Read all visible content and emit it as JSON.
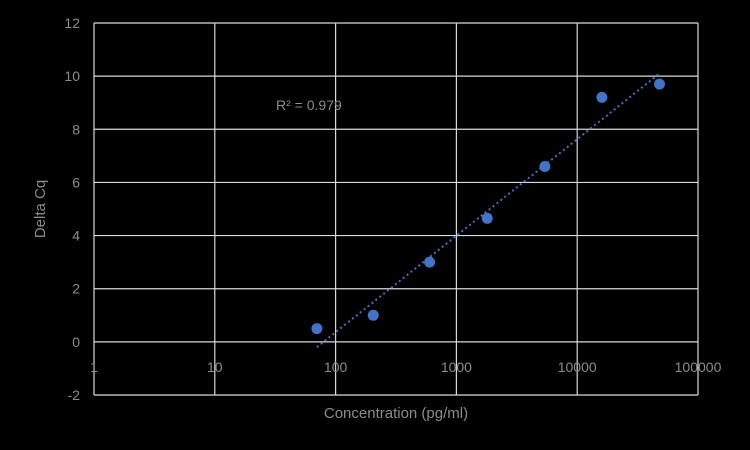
{
  "chart_data": {
    "type": "scatter",
    "title": "",
    "xlabel": "Concentration (pg/ml)",
    "ylabel": "Delta Cq",
    "x_scale": "log",
    "xlim": [
      1,
      100000
    ],
    "ylim": [
      -2,
      12
    ],
    "x_ticks": [
      "1",
      "10",
      "100",
      "1000",
      "10000",
      "100000"
    ],
    "y_ticks": [
      "-2",
      "0",
      "2",
      "4",
      "6",
      "8",
      "10",
      "12"
    ],
    "grid": true,
    "legend": "none",
    "series": [
      {
        "points": [
          {
            "x": 70,
            "y": 0.5
          },
          {
            "x": 205,
            "y": 1.0
          },
          {
            "x": 600,
            "y": 3.0
          },
          {
            "x": 1800,
            "y": 4.65
          },
          {
            "x": 5400,
            "y": 6.6
          },
          {
            "x": 16000,
            "y": 9.2
          },
          {
            "x": 48000,
            "y": 9.7
          }
        ],
        "trendline": {
          "type": "log",
          "x_start": 70,
          "y_start": -0.2,
          "x_end": 48000,
          "y_end": 10.1
        },
        "annotation": "R² = 0.979"
      }
    ],
    "colors": {
      "marker": "#4472c4",
      "trendline": "#4472c4",
      "grid": "#d9d9d9",
      "text": "#8c8c8c",
      "background": "#000000"
    }
  }
}
